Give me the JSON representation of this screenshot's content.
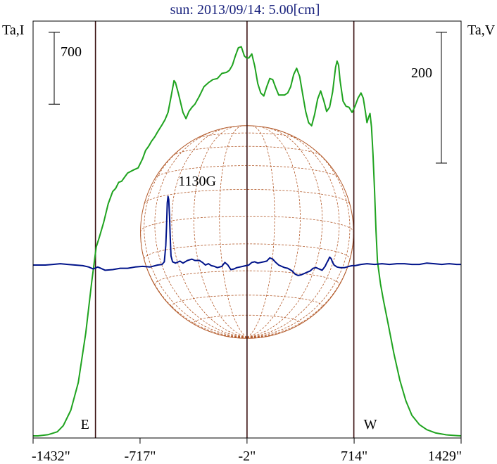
{
  "chart_data": {
    "type": "line",
    "title": "sun: 2013/09/14: 5.00[cm]",
    "left_axis_label": "Ta,I",
    "right_axis_label": "Ta,V",
    "x_tick_labels": [
      "-1432\"",
      "-717\"",
      "-2\"",
      "714\"",
      "1429\""
    ],
    "x_ticks": [
      -1432,
      -717,
      -2,
      714,
      1429
    ],
    "xlim": [
      -1432,
      1429
    ],
    "limb_marks": [
      {
        "x": -1015,
        "label": "E"
      },
      {
        "x": -2,
        "label": ""
      },
      {
        "x": 712,
        "label": "W"
      }
    ],
    "disk": {
      "center_x": -2,
      "radius_arcsec": 712,
      "color": "#b35a2a"
    },
    "scale_bars": [
      {
        "series": "I",
        "value": 700,
        "label": "700"
      },
      {
        "series": "V",
        "value": 200,
        "label": "200"
      }
    ],
    "annotations": [
      {
        "text": "1130G",
        "x": -335
      }
    ],
    "series": [
      {
        "name": "I",
        "axis": "left",
        "color": "#1fa31f",
        "points": [
          [
            -1432,
            0
          ],
          [
            -1400,
            0
          ],
          [
            -1330,
            12
          ],
          [
            -1270,
            40
          ],
          [
            -1230,
            100
          ],
          [
            -1180,
            250
          ],
          [
            -1130,
            520
          ],
          [
            -1080,
            1000
          ],
          [
            -1040,
            1500
          ],
          [
            -1010,
            1840
          ],
          [
            -990,
            1930
          ],
          [
            -960,
            2080
          ],
          [
            -930,
            2260
          ],
          [
            -900,
            2380
          ],
          [
            -880,
            2410
          ],
          [
            -860,
            2470
          ],
          [
            -840,
            2480
          ],
          [
            -820,
            2520
          ],
          [
            -800,
            2560
          ],
          [
            -760,
            2590
          ],
          [
            -730,
            2610
          ],
          [
            -700,
            2700
          ],
          [
            -680,
            2780
          ],
          [
            -660,
            2820
          ],
          [
            -640,
            2870
          ],
          [
            -620,
            2910
          ],
          [
            -600,
            2960
          ],
          [
            -570,
            3030
          ],
          [
            -550,
            3080
          ],
          [
            -530,
            3150
          ],
          [
            -510,
            3300
          ],
          [
            -490,
            3460
          ],
          [
            -480,
            3440
          ],
          [
            -460,
            3330
          ],
          [
            -430,
            3150
          ],
          [
            -410,
            3090
          ],
          [
            -390,
            3160
          ],
          [
            -370,
            3200
          ],
          [
            -350,
            3230
          ],
          [
            -320,
            3310
          ],
          [
            -290,
            3400
          ],
          [
            -260,
            3440
          ],
          [
            -230,
            3470
          ],
          [
            -200,
            3480
          ],
          [
            -170,
            3530
          ],
          [
            -140,
            3540
          ],
          [
            -120,
            3560
          ],
          [
            -100,
            3610
          ],
          [
            -80,
            3700
          ],
          [
            -60,
            3780
          ],
          [
            -40,
            3790
          ],
          [
            -20,
            3700
          ],
          [
            -5,
            3680
          ],
          [
            10,
            3680
          ],
          [
            30,
            3720
          ],
          [
            50,
            3600
          ],
          [
            70,
            3430
          ],
          [
            90,
            3340
          ],
          [
            110,
            3310
          ],
          [
            130,
            3400
          ],
          [
            150,
            3480
          ],
          [
            170,
            3470
          ],
          [
            190,
            3390
          ],
          [
            210,
            3320
          ],
          [
            230,
            3320
          ],
          [
            250,
            3320
          ],
          [
            270,
            3340
          ],
          [
            290,
            3400
          ],
          [
            310,
            3520
          ],
          [
            330,
            3580
          ],
          [
            350,
            3500
          ],
          [
            370,
            3330
          ],
          [
            390,
            3160
          ],
          [
            410,
            3050
          ],
          [
            430,
            3020
          ],
          [
            450,
            3130
          ],
          [
            470,
            3280
          ],
          [
            490,
            3360
          ],
          [
            510,
            3270
          ],
          [
            530,
            3160
          ],
          [
            550,
            3200
          ],
          [
            570,
            3350
          ],
          [
            590,
            3590
          ],
          [
            600,
            3650
          ],
          [
            610,
            3610
          ],
          [
            620,
            3460
          ],
          [
            640,
            3260
          ],
          [
            660,
            3210
          ],
          [
            680,
            3200
          ],
          [
            700,
            3150
          ],
          [
            720,
            3210
          ],
          [
            740,
            3290
          ],
          [
            760,
            3340
          ],
          [
            775,
            3290
          ],
          [
            790,
            3150
          ],
          [
            800,
            3050
          ],
          [
            810,
            3100
          ],
          [
            820,
            3140
          ],
          [
            830,
            3010
          ],
          [
            840,
            2750
          ],
          [
            850,
            2400
          ],
          [
            860,
            2000
          ],
          [
            870,
            1700
          ],
          [
            890,
            1480
          ],
          [
            910,
            1320
          ],
          [
            940,
            1100
          ],
          [
            980,
            800
          ],
          [
            1020,
            540
          ],
          [
            1060,
            340
          ],
          [
            1100,
            200
          ],
          [
            1150,
            110
          ],
          [
            1200,
            60
          ],
          [
            1260,
            28
          ],
          [
            1330,
            10
          ],
          [
            1400,
            3
          ],
          [
            1429,
            0
          ]
        ]
      },
      {
        "name": "V",
        "axis": "right",
        "color": "#00138a",
        "points": [
          [
            -1432,
            0
          ],
          [
            -1350,
            0
          ],
          [
            -1300,
            1
          ],
          [
            -1250,
            2
          ],
          [
            -1200,
            1
          ],
          [
            -1150,
            0
          ],
          [
            -1100,
            -1
          ],
          [
            -1060,
            -3
          ],
          [
            -1030,
            -6
          ],
          [
            -1000,
            -3
          ],
          [
            -980,
            -5
          ],
          [
            -950,
            -8
          ],
          [
            -900,
            -7
          ],
          [
            -850,
            -5
          ],
          [
            -800,
            -5
          ],
          [
            -750,
            -3
          ],
          [
            -700,
            -2
          ],
          [
            -650,
            -3
          ],
          [
            -600,
            0
          ],
          [
            -570,
            1
          ],
          [
            -555,
            5
          ],
          [
            -545,
            30
          ],
          [
            -540,
            60
          ],
          [
            -535,
            95
          ],
          [
            -530,
            105
          ],
          [
            -525,
            100
          ],
          [
            -520,
            75
          ],
          [
            -515,
            40
          ],
          [
            -510,
            14
          ],
          [
            -500,
            5
          ],
          [
            -480,
            3
          ],
          [
            -450,
            6
          ],
          [
            -430,
            3
          ],
          [
            -400,
            7
          ],
          [
            -370,
            9
          ],
          [
            -350,
            7
          ],
          [
            -320,
            7
          ],
          [
            -300,
            4
          ],
          [
            -280,
            0
          ],
          [
            -260,
            2
          ],
          [
            -240,
            -1
          ],
          [
            -220,
            -2
          ],
          [
            -200,
            -4
          ],
          [
            -170,
            -2
          ],
          [
            -150,
            4
          ],
          [
            -130,
            0
          ],
          [
            -110,
            -7
          ],
          [
            -90,
            -6
          ],
          [
            -70,
            -4
          ],
          [
            -50,
            -3
          ],
          [
            -30,
            -2
          ],
          [
            -10,
            -1
          ],
          [
            10,
            0
          ],
          [
            30,
            4
          ],
          [
            50,
            5
          ],
          [
            70,
            3
          ],
          [
            90,
            4
          ],
          [
            110,
            5
          ],
          [
            130,
            6
          ],
          [
            150,
            11
          ],
          [
            170,
            9
          ],
          [
            190,
            4
          ],
          [
            210,
            0
          ],
          [
            230,
            -2
          ],
          [
            250,
            -4
          ],
          [
            270,
            -5
          ],
          [
            300,
            -9
          ],
          [
            320,
            -14
          ],
          [
            340,
            -16
          ],
          [
            360,
            -15
          ],
          [
            380,
            -13
          ],
          [
            400,
            -11
          ],
          [
            420,
            -9
          ],
          [
            440,
            -5
          ],
          [
            460,
            -4
          ],
          [
            480,
            -6
          ],
          [
            500,
            -8
          ],
          [
            520,
            -2
          ],
          [
            530,
            3
          ],
          [
            540,
            7
          ],
          [
            550,
            12
          ],
          [
            560,
            10
          ],
          [
            570,
            4
          ],
          [
            580,
            0
          ],
          [
            600,
            -3
          ],
          [
            620,
            -4
          ],
          [
            650,
            -4
          ],
          [
            680,
            -2
          ],
          [
            700,
            -1
          ],
          [
            720,
            -1
          ],
          [
            740,
            0
          ],
          [
            760,
            1
          ],
          [
            800,
            2
          ],
          [
            850,
            1
          ],
          [
            900,
            2
          ],
          [
            950,
            1
          ],
          [
            1000,
            2
          ],
          [
            1050,
            2
          ],
          [
            1100,
            1
          ],
          [
            1150,
            1
          ],
          [
            1200,
            3
          ],
          [
            1250,
            2
          ],
          [
            1300,
            1
          ],
          [
            1350,
            2
          ],
          [
            1400,
            1
          ],
          [
            1429,
            1
          ]
        ]
      }
    ]
  }
}
